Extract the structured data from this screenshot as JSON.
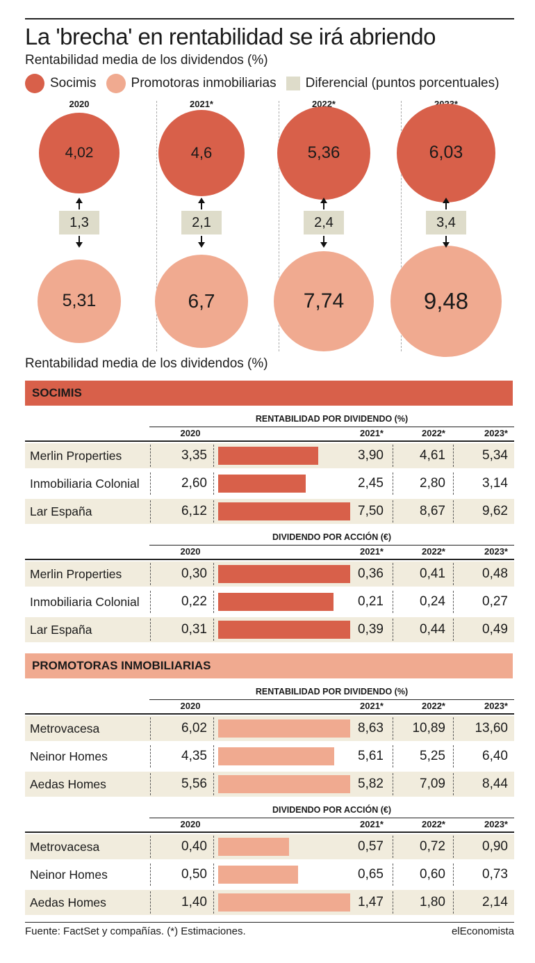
{
  "title": "La 'brecha' en rentabilidad se irá abriendo",
  "subtitle": "Rentabilidad media de los dividendos (%)",
  "legend": {
    "socimis": "Socimis",
    "promotoras": "Promotoras inmobiliarias",
    "diferencial": "Diferencial (puntos porcentuales)"
  },
  "colors": {
    "socimis": "#d8604a",
    "promotoras": "#f0aa90",
    "diferencial": "#dedcca",
    "row_shade": "#f1ecdd"
  },
  "chart_data": [
    {
      "type": "bubble",
      "categories": [
        "2020",
        "2021*",
        "2022*",
        "2023*"
      ],
      "series": [
        {
          "name": "Socimis",
          "values": [
            "4,02",
            "4,6",
            "5,36",
            "6,03"
          ]
        },
        {
          "name": "Promotoras inmobiliarias",
          "values": [
            "5,31",
            "6,7",
            "7,74",
            "9,48"
          ]
        },
        {
          "name": "Diferencial (puntos porcentuales)",
          "values": [
            "1,3",
            "2,1",
            "2,4",
            "3,4"
          ]
        }
      ]
    },
    {
      "type": "table",
      "subtitle": "Rentabilidad media de los dividendos (%)",
      "sections": [
        {
          "name": "SOCIMIS",
          "tables": [
            {
              "label": "RENTABILIDAD POR DIVIDENDO (%)",
              "columns": [
                "2020",
                "2021*",
                "2022*",
                "2023*"
              ],
              "rows": [
                {
                  "name": "Merlin Properties",
                  "values": [
                    "3,35",
                    "3,90",
                    "4,61",
                    "5,34"
                  ]
                },
                {
                  "name": "Inmobiliaria Colonial",
                  "values": [
                    "2,60",
                    "2,45",
                    "2,80",
                    "3,14"
                  ]
                },
                {
                  "name": "Lar España",
                  "values": [
                    "6,12",
                    "7,50",
                    "8,67",
                    "9,62"
                  ]
                }
              ]
            },
            {
              "label": "DIVIDENDO POR ACCIÓN (€)",
              "columns": [
                "2020",
                "2021*",
                "2022*",
                "2023*"
              ],
              "rows": [
                {
                  "name": "Merlin Properties",
                  "values": [
                    "0,30",
                    "0,36",
                    "0,41",
                    "0,48"
                  ]
                },
                {
                  "name": "Inmobiliaria Colonial",
                  "values": [
                    "0,22",
                    "0,21",
                    "0,24",
                    "0,27"
                  ]
                },
                {
                  "name": "Lar España",
                  "values": [
                    "0,31",
                    "0,39",
                    "0,44",
                    "0,49"
                  ]
                }
              ]
            }
          ]
        },
        {
          "name": "PROMOTORAS INMOBILIARIAS",
          "tables": [
            {
              "label": "RENTABILIDAD POR DIVIDENDO (%)",
              "columns": [
                "2020",
                "2021*",
                "2022*",
                "2023*"
              ],
              "rows": [
                {
                  "name": "Metrovacesa",
                  "values": [
                    "6,02",
                    "8,63",
                    "10,89",
                    "13,60"
                  ]
                },
                {
                  "name": "Neinor Homes",
                  "values": [
                    "4,35",
                    "5,61",
                    "5,25",
                    "6,40"
                  ]
                },
                {
                  "name": "Aedas Homes",
                  "values": [
                    "5,56",
                    "5,82",
                    "7,09",
                    "8,44"
                  ]
                }
              ]
            },
            {
              "label": "DIVIDENDO POR ACCIÓN (€)",
              "columns": [
                "2020",
                "2021*",
                "2022*",
                "2023*"
              ],
              "rows": [
                {
                  "name": "Metrovacesa",
                  "values": [
                    "0,40",
                    "0,57",
                    "0,72",
                    "0,90"
                  ]
                },
                {
                  "name": "Neinor Homes",
                  "values": [
                    "0,50",
                    "0,65",
                    "0,60",
                    "0,73"
                  ]
                },
                {
                  "name": "Aedas Homes",
                  "values": [
                    "1,40",
                    "1,47",
                    "1,80",
                    "2,14"
                  ]
                }
              ]
            }
          ]
        }
      ]
    }
  ],
  "footer": {
    "source": "Fuente: FactSet y compañías. (*) Estimaciones.",
    "brand": "elEconomista"
  }
}
